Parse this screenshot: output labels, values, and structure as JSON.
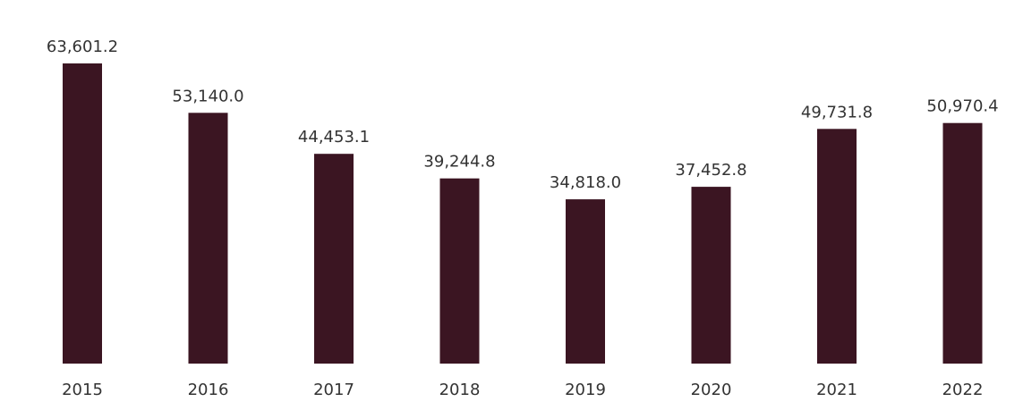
{
  "chart_data": {
    "type": "bar",
    "categories": [
      "2015",
      "2016",
      "2017",
      "2018",
      "2019",
      "2020",
      "2021",
      "2022"
    ],
    "values": [
      63601.2,
      53140.0,
      44453.1,
      39244.8,
      34818.0,
      37452.8,
      49731.8,
      50970.4
    ],
    "value_labels": [
      "63,601.2",
      "53,140.0",
      "44,453.1",
      "39,244.8",
      "34,818.0",
      "37,452.8",
      "49,731.8",
      "50,970.4"
    ],
    "title": "",
    "xlabel": "",
    "ylabel": "",
    "ylim": [
      0,
      63601.2
    ],
    "grid": false,
    "legend": "none",
    "bar_color": "#3b1522"
  }
}
